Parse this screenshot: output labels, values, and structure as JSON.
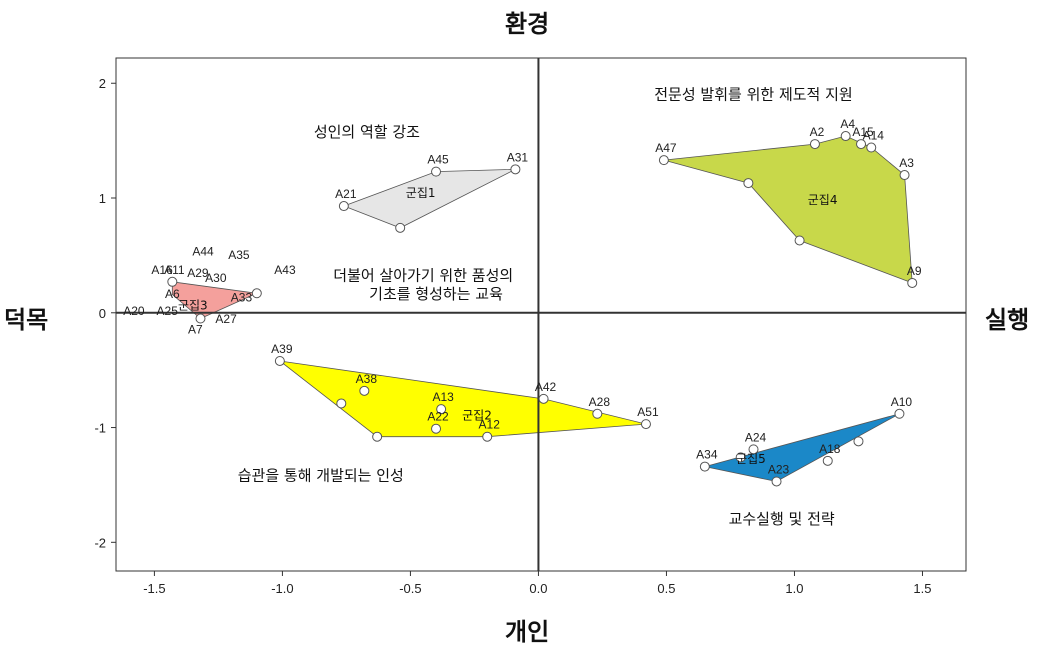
{
  "chart_data": {
    "type": "scatter",
    "axis_titles": {
      "top": "환경",
      "bottom": "개인",
      "left": "덕목",
      "right": "실행"
    },
    "xlim": [
      -1.65,
      1.67
    ],
    "ylim": [
      -2.25,
      2.22
    ],
    "x_ticks": [
      -1.5,
      -1.0,
      -0.5,
      0.0,
      0.5,
      1.0,
      1.5
    ],
    "x_tick_labels": [
      "-1.5",
      "-1.0",
      "-0.5",
      "0.0",
      "0.5",
      "1.0",
      "1.5"
    ],
    "y_ticks": [
      2,
      1,
      0,
      -1,
      -2
    ],
    "y_tick_labels": [
      "2",
      "1",
      "0",
      "-1",
      "-2"
    ],
    "reference_lines": {
      "x": 0,
      "y": 0
    },
    "grid": false,
    "points": [
      {
        "label": "A21",
        "x": -0.76,
        "y": 0.93
      },
      {
        "label": "A45",
        "x": -0.4,
        "y": 1.23
      },
      {
        "label": "A31",
        "x": -0.09,
        "y": 1.25
      },
      {
        "label": "",
        "x": -0.54,
        "y": 0.74
      },
      {
        "label": "A47",
        "x": 0.49,
        "y": 1.33
      },
      {
        "label": "A2",
        "x": 1.08,
        "y": 1.47
      },
      {
        "label": "A4",
        "x": 1.2,
        "y": 1.54
      },
      {
        "label": "A15",
        "x": 1.26,
        "y": 1.47
      },
      {
        "label": "A14",
        "x": 1.3,
        "y": 1.44
      },
      {
        "label": "A3",
        "x": 1.43,
        "y": 1.2
      },
      {
        "label": "A9",
        "x": 1.46,
        "y": 0.26
      },
      {
        "label": "",
        "x": 0.82,
        "y": 1.13
      },
      {
        "label": "",
        "x": 1.02,
        "y": 0.63
      },
      {
        "label": "A11",
        "x": -1.43,
        "y": 0.27
      },
      {
        "label": "",
        "x": -1.1,
        "y": 0.17
      },
      {
        "label": "",
        "x": -1.32,
        "y": -0.05
      },
      {
        "label": "A39",
        "x": -1.01,
        "y": -0.42
      },
      {
        "label": "A38",
        "x": -0.68,
        "y": -0.68
      },
      {
        "label": "",
        "x": -0.77,
        "y": -0.79
      },
      {
        "label": "",
        "x": -0.63,
        "y": -1.08
      },
      {
        "label": "A13",
        "x": -0.38,
        "y": -0.84
      },
      {
        "label": "A22",
        "x": -0.4,
        "y": -1.01
      },
      {
        "label": "A12",
        "x": -0.2,
        "y": -1.08
      },
      {
        "label": "A42",
        "x": 0.02,
        "y": -0.75
      },
      {
        "label": "A28",
        "x": 0.23,
        "y": -0.88
      },
      {
        "label": "A51",
        "x": 0.42,
        "y": -0.97
      },
      {
        "label": "A10",
        "x": 1.41,
        "y": -0.88
      },
      {
        "label": "A24",
        "x": 0.84,
        "y": -1.19
      },
      {
        "label": "",
        "x": 0.79,
        "y": -1.26
      },
      {
        "label": "A34",
        "x": 0.65,
        "y": -1.34
      },
      {
        "label": "A23",
        "x": 0.93,
        "y": -1.47
      },
      {
        "label": "A18",
        "x": 1.13,
        "y": -1.29
      },
      {
        "label": "",
        "x": 1.25,
        "y": -1.12
      }
    ],
    "unmarked_labels": [
      {
        "label": "A44",
        "x": -1.31,
        "y": 0.5
      },
      {
        "label": "A35",
        "x": -1.17,
        "y": 0.47
      },
      {
        "label": "A43",
        "x": -0.99,
        "y": 0.34
      },
      {
        "label": "A16",
        "x": -1.47,
        "y": 0.34
      },
      {
        "label": "A29",
        "x": -1.33,
        "y": 0.31
      },
      {
        "label": "A30",
        "x": -1.26,
        "y": 0.27
      },
      {
        "label": "A6",
        "x": -1.43,
        "y": 0.13
      },
      {
        "label": "A33",
        "x": -1.16,
        "y": 0.1
      },
      {
        "label": "A20",
        "x": -1.58,
        "y": -0.02
      },
      {
        "label": "A25",
        "x": -1.45,
        "y": -0.02
      },
      {
        "label": "A27",
        "x": -1.22,
        "y": -0.09
      },
      {
        "label": "A7",
        "x": -1.34,
        "y": -0.18
      }
    ],
    "clusters": [
      {
        "name": "군집1",
        "color": "#e6e6e6",
        "hull": [
          [
            -0.76,
            0.93
          ],
          [
            -0.4,
            1.23
          ],
          [
            -0.09,
            1.25
          ],
          [
            -0.54,
            0.74
          ]
        ],
        "label_pos": [
          -0.46,
          1.01
        ],
        "theme": "성인의 역할 강조",
        "theme_pos": [
          -0.67,
          1.53
        ]
      },
      {
        "name": "군집2",
        "color": "#ffff00",
        "hull": [
          [
            -1.01,
            -0.42
          ],
          [
            0.02,
            -0.75
          ],
          [
            0.42,
            -0.97
          ],
          [
            -0.2,
            -1.08
          ],
          [
            -0.63,
            -1.08
          ]
        ],
        "label_pos": [
          -0.24,
          -0.93
        ],
        "theme": "습관을 통해 개발되는 인성",
        "theme_pos": [
          -0.85,
          -1.46
        ]
      },
      {
        "name": "군집3",
        "color": "#f4a09c",
        "hull": [
          [
            -1.43,
            0.27
          ],
          [
            -1.1,
            0.17
          ],
          [
            -1.32,
            -0.05
          ],
          [
            -1.43,
            0.16
          ]
        ],
        "label_pos": [
          -1.35,
          0.03
        ]
      },
      {
        "name": "군집4",
        "color": "#c8d84a",
        "hull": [
          [
            0.49,
            1.33
          ],
          [
            1.08,
            1.47
          ],
          [
            1.2,
            1.54
          ],
          [
            1.3,
            1.44
          ],
          [
            1.43,
            1.2
          ],
          [
            1.46,
            0.26
          ],
          [
            1.02,
            0.63
          ],
          [
            0.82,
            1.13
          ]
        ],
        "label_pos": [
          1.11,
          0.95
        ],
        "theme": "전문성 발휘를 위한 제도적 지원",
        "theme_pos": [
          0.84,
          1.86
        ]
      },
      {
        "name": "군집5",
        "color": "#1b88c8",
        "hull": [
          [
            0.65,
            -1.34
          ],
          [
            1.41,
            -0.88
          ],
          [
            0.93,
            -1.47
          ]
        ],
        "label_pos": [
          0.83,
          -1.31
        ],
        "theme": "교수실행 및 전략",
        "theme_pos": [
          0.95,
          -1.84
        ]
      }
    ],
    "annotations": [
      {
        "text": "더불어 살아가기 위한 품성의",
        "x": -0.45,
        "y": 0.28
      },
      {
        "text": "기초를 형성하는 교육",
        "x": -0.4,
        "y": 0.12
      }
    ]
  }
}
